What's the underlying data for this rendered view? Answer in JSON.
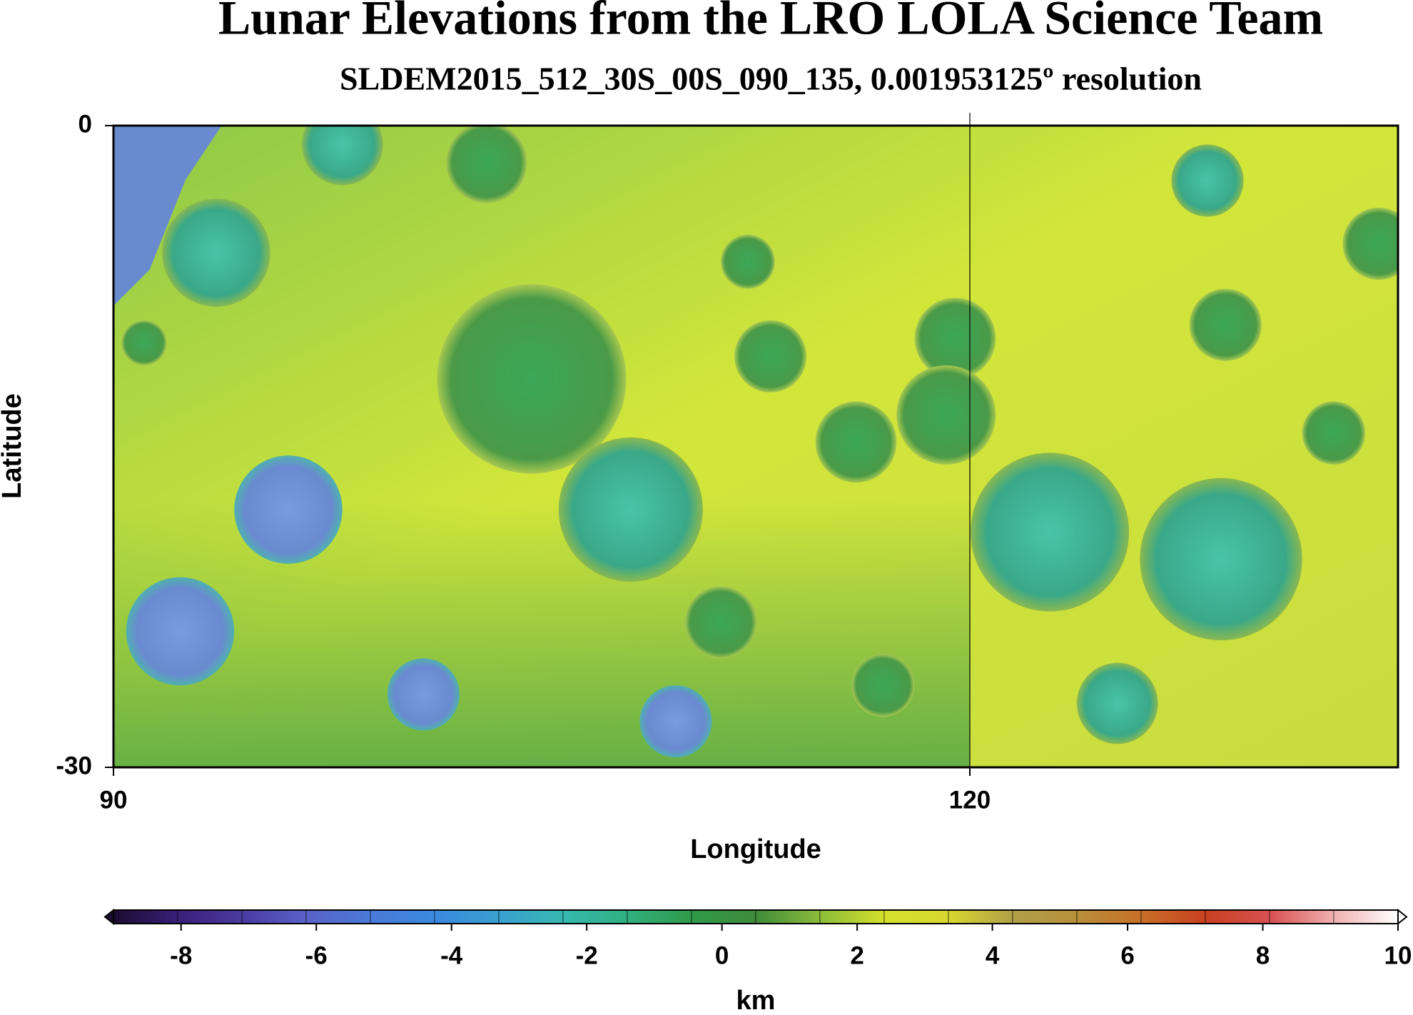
{
  "chart_data": {
    "type": "map",
    "title": "Lunar Elevations from the LRO LOLA Science Team",
    "subtitle": "SLDEM2015_512_30S_00S_090_135, 0.001953125º resolution",
    "x_label": "Longitude",
    "y_label": "Latitude",
    "xlim": [
      90,
      135
    ],
    "ylim": [
      -30,
      0
    ],
    "xticks": [
      90,
      120
    ],
    "yticks": [
      0,
      -30
    ],
    "grid": true,
    "colorbar": {
      "label": "km",
      "lim": [
        -9,
        10
      ],
      "ticks": [
        -8,
        -6,
        -4,
        -2,
        0,
        2,
        4,
        6,
        8,
        10
      ],
      "colors": [
        "#1c0b30",
        "#3a1f78",
        "#4a3aa0",
        "#5a62c8",
        "#4a7ad8",
        "#3a8ae0",
        "#3aa0d0",
        "#36b8b0",
        "#30b080",
        "#2f9a4a",
        "#3f8a3a",
        "#8cbc3a",
        "#d4e02c",
        "#d8d830",
        "#b0a048",
        "#b8903a",
        "#c87028",
        "#c84020",
        "#d85050",
        "#f0b0b0",
        "#ffffff"
      ]
    }
  }
}
